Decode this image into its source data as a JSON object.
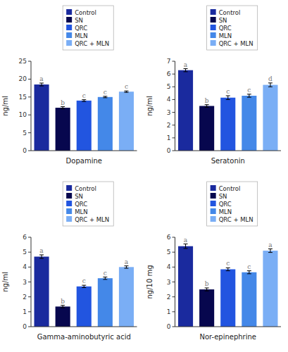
{
  "chart_data": [
    {
      "type": "bar",
      "xlabel": "Dopamine",
      "ylabel": "ng/ml",
      "categories": [
        "Control",
        "SN",
        "QRC",
        "MLN",
        "QRC + MLN"
      ],
      "values": [
        18.5,
        12.0,
        14.0,
        15.0,
        16.5
      ],
      "errors": [
        0.4,
        0.3,
        0.25,
        0.2,
        0.2
      ],
      "annotations": [
        "a",
        "b",
        "c",
        "c",
        "c"
      ],
      "colors": [
        "#1a2a9e",
        "#07074e",
        "#2255e0",
        "#4488e8",
        "#7aaef5"
      ],
      "ylim": [
        0,
        25
      ],
      "yticks": [
        0,
        5,
        10,
        15,
        20,
        25
      ],
      "grid": false,
      "legend": "top",
      "tick_labels": "y"
    },
    {
      "type": "bar",
      "xlabel": "Seratonin",
      "ylabel": "ng/ml",
      "categories": [
        "Control",
        "SN",
        "QRC",
        "MLN",
        "QRC + MLN"
      ],
      "values": [
        6.3,
        3.5,
        4.15,
        4.3,
        5.15
      ],
      "errors": [
        0.12,
        0.1,
        0.15,
        0.12,
        0.15
      ],
      "annotations": [
        "a",
        "b",
        "c",
        "c",
        "d"
      ],
      "colors": [
        "#1a2a9e",
        "#07074e",
        "#2255e0",
        "#4488e8",
        "#7aaef5"
      ],
      "ylim": [
        0,
        7
      ],
      "yticks": [
        0,
        1,
        2,
        3,
        4,
        5,
        6,
        7
      ],
      "grid": false,
      "legend": "top",
      "tick_labels": "y"
    },
    {
      "type": "bar",
      "xlabel": "Gamma-aminobutyric acid",
      "ylabel": "ng/ml",
      "categories": [
        "Control",
        "SN",
        "QRC",
        "MLN",
        "QRC + MLN"
      ],
      "values": [
        4.7,
        1.35,
        2.7,
        3.25,
        4.0
      ],
      "errors": [
        0.12,
        0.08,
        0.08,
        0.08,
        0.08
      ],
      "annotations": [
        "a",
        "b",
        "c",
        "c",
        "a"
      ],
      "colors": [
        "#1a2a9e",
        "#07074e",
        "#2255e0",
        "#4488e8",
        "#7aaef5"
      ],
      "ylim": [
        0,
        6
      ],
      "yticks": [
        0,
        1,
        2,
        3,
        4,
        5,
        6
      ],
      "grid": false,
      "legend": "top",
      "tick_labels": "y"
    },
    {
      "type": "bar",
      "xlabel": "Nor-epinephrine",
      "ylabel": "ng/10 mg",
      "categories": [
        "Control",
        "SN",
        "QRC",
        "MLN",
        "QRC + MLN"
      ],
      "values": [
        5.4,
        2.5,
        3.85,
        3.65,
        5.1
      ],
      "errors": [
        0.15,
        0.1,
        0.1,
        0.1,
        0.12
      ],
      "annotations": [
        "a",
        "b",
        "c",
        "c",
        "a"
      ],
      "colors": [
        "#1a2a9e",
        "#07074e",
        "#2255e0",
        "#4488e8",
        "#7aaef5"
      ],
      "ylim": [
        0,
        6
      ],
      "yticks": [
        0,
        1,
        2,
        3,
        4,
        5,
        6
      ],
      "grid": false,
      "legend": "top",
      "tick_labels": "y"
    }
  ]
}
